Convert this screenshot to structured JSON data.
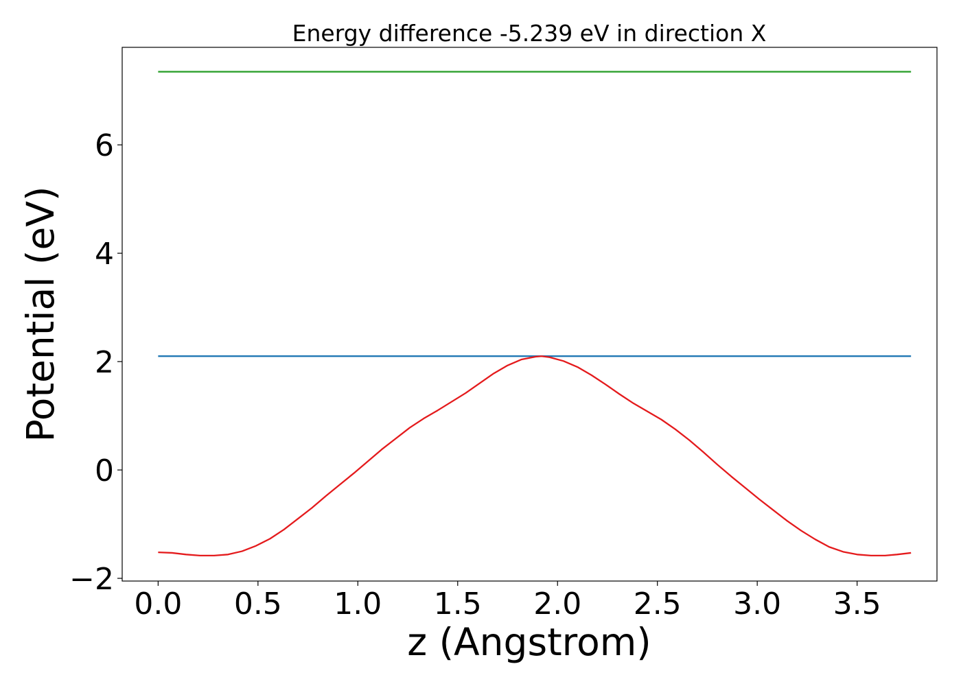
{
  "chart_data": {
    "type": "line",
    "title": "Energy difference -5.239 eV in direction X",
    "xlabel": "z (Angstrom)",
    "ylabel": "Potential (eV)",
    "xlim": [
      -0.18,
      3.9
    ],
    "ylim": [
      -2.05,
      7.8
    ],
    "xticks": [
      0.0,
      0.5,
      1.0,
      1.5,
      2.0,
      2.5,
      3.0,
      3.5
    ],
    "xtick_labels": [
      "0.0",
      "0.5",
      "1.0",
      "1.5",
      "2.0",
      "2.5",
      "3.0",
      "3.5"
    ],
    "yticks": [
      -2,
      0,
      2,
      4,
      6
    ],
    "ytick_labels": [
      "−2",
      "0",
      "2",
      "4",
      "6"
    ],
    "grid": false,
    "legend": "none",
    "series": [
      {
        "color": "#2ca02c",
        "x": [
          0.0,
          3.77
        ],
        "y": [
          7.35,
          7.35
        ]
      },
      {
        "color": "#1f77b4",
        "x": [
          0.0,
          3.77
        ],
        "y": [
          2.1,
          2.1
        ]
      },
      {
        "color": "#e41a1c",
        "x": [
          0.0,
          0.07,
          0.14,
          0.21,
          0.28,
          0.35,
          0.42,
          0.49,
          0.56,
          0.63,
          0.7,
          0.77,
          0.84,
          0.91,
          0.98,
          1.05,
          1.12,
          1.19,
          1.26,
          1.33,
          1.4,
          1.47,
          1.54,
          1.61,
          1.68,
          1.75,
          1.82,
          1.89,
          1.92,
          1.96,
          2.03,
          2.1,
          2.17,
          2.24,
          2.31,
          2.38,
          2.45,
          2.52,
          2.59,
          2.66,
          2.73,
          2.8,
          2.87,
          2.94,
          3.01,
          3.08,
          3.15,
          3.22,
          3.29,
          3.36,
          3.43,
          3.5,
          3.57,
          3.64,
          3.7,
          3.77
        ],
        "y": [
          -1.52,
          -1.53,
          -1.56,
          -1.58,
          -1.58,
          -1.56,
          -1.5,
          -1.4,
          -1.27,
          -1.1,
          -0.9,
          -0.7,
          -0.48,
          -0.27,
          -0.06,
          0.16,
          0.38,
          0.58,
          0.78,
          0.95,
          1.1,
          1.26,
          1.42,
          1.6,
          1.78,
          1.93,
          2.04,
          2.09,
          2.1,
          2.08,
          2.01,
          1.9,
          1.75,
          1.58,
          1.4,
          1.23,
          1.08,
          0.93,
          0.75,
          0.55,
          0.33,
          0.1,
          -0.12,
          -0.33,
          -0.54,
          -0.74,
          -0.94,
          -1.12,
          -1.28,
          -1.42,
          -1.51,
          -1.56,
          -1.58,
          -1.58,
          -1.56,
          -1.53
        ]
      }
    ]
  }
}
